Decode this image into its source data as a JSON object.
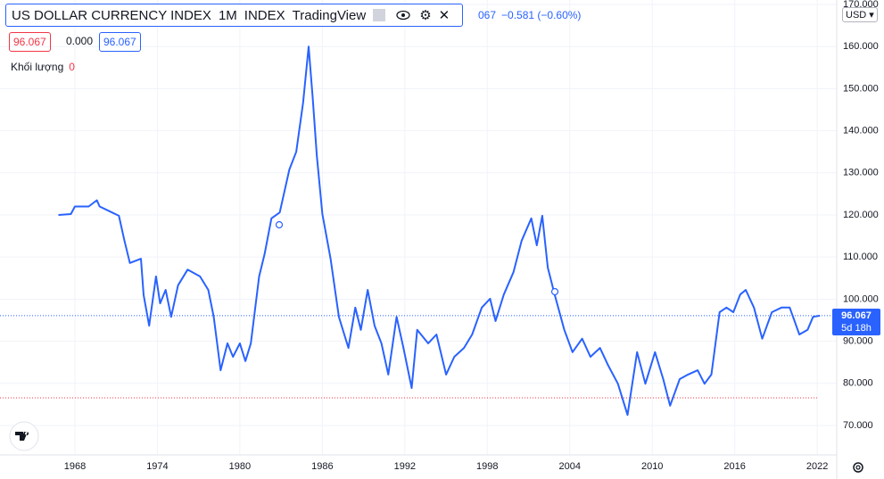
{
  "chart_data": {
    "type": "line",
    "title": "US DOLLAR CURRENCY INDEX",
    "interval": "1M",
    "exchange": "INDEX",
    "source": "TradingView",
    "header_price_fragment": "067",
    "header_change": "−0.581 (−0.60%)",
    "legend_values": [
      "96.067",
      "0.000",
      "96.067"
    ],
    "volume_label": "Khối lượng",
    "volume_value": 0,
    "currency": "USD",
    "last_price_label": "96.067",
    "countdown": "5d 18h",
    "color": "#2962ff",
    "x": [
      1966.8,
      1967.7,
      1968,
      1969,
      1969.6,
      1969.8,
      1970.7,
      1971.2,
      1971.6,
      1972,
      1972.8,
      1973,
      1973.4,
      1973.9,
      1974.2,
      1974.6,
      1975,
      1975.5,
      1976.2,
      1977.1,
      1977.7,
      1978.1,
      1978.6,
      1979.1,
      1979.5,
      1980,
      1980.4,
      1980.8,
      1981.4,
      1981.8,
      1982.3,
      1982.9,
      1983.6,
      1984.1,
      1984.6,
      1985.0,
      1985.3,
      1985.6,
      1986,
      1986.6,
      1987.2,
      1987.9,
      1988.4,
      1988.8,
      1989.3,
      1989.8,
      1990.3,
      1990.8,
      1991.4,
      1991.9,
      1992.5,
      1992.9,
      1993.7,
      1994.3,
      1995,
      1995.6,
      1996.3,
      1996.9,
      1997.6,
      1998.2,
      1998.6,
      1999.2,
      1999.9,
      2000.5,
      2001.2,
      2001.6,
      2002,
      2002.4,
      2002.9,
      2003.6,
      2004.2,
      2004.9,
      2005.5,
      2006.2,
      2006.8,
      2007.5,
      2008.2,
      2008.9,
      2009.5,
      2010.2,
      2010.8,
      2011.3,
      2012,
      2012.6,
      2013.3,
      2013.8,
      2014.3,
      2014.9,
      2015.4,
      2015.9,
      2016.4,
      2016.8,
      2017.4,
      2018,
      2018.7,
      2019.4,
      2020,
      2020.7,
      2021.3,
      2021.7,
      2022.2
    ],
    "values": [
      120,
      120.2,
      122,
      122,
      123.5,
      122,
      120.6,
      119.8,
      113.9,
      108.6,
      109.6,
      101,
      93.7,
      105.4,
      99,
      102.2,
      95.8,
      103.3,
      107,
      105.4,
      102.2,
      95.8,
      83.1,
      89.5,
      86.3,
      89.5,
      85.3,
      89.5,
      105.4,
      110.7,
      119.2,
      120.6,
      130.8,
      135,
      146.7,
      160,
      147.7,
      134,
      120.2,
      109.6,
      95.8,
      88.4,
      98,
      92.7,
      102.2,
      93.7,
      89.5,
      82.1,
      95.8,
      88.4,
      78.9,
      92.7,
      89.5,
      91.6,
      82.1,
      86.3,
      88.4,
      91.6,
      98,
      100.1,
      94.8,
      101.1,
      106.4,
      113.9,
      119.2,
      112.8,
      119.8,
      107.5,
      101.1,
      92.7,
      87.4,
      90.6,
      86.3,
      88.4,
      84.2,
      79.9,
      72.5,
      87.4,
      79.9,
      87.4,
      81,
      74.7,
      81,
      82.1,
      83.1,
      79.9,
      82.1,
      96.9,
      98,
      96.9,
      101.1,
      102.2,
      98,
      90.6,
      96.9,
      98,
      98,
      91.6,
      92.7,
      95.8,
      96.067
    ],
    "xlim": [
      1962.55,
      2023.42
    ],
    "ylim": [
      63,
      171.06
    ],
    "xticks": [
      1968,
      1974,
      1980,
      1986,
      1992,
      1998,
      2004,
      2010,
      2016,
      2022
    ],
    "yticks": [
      {
        "value": 70,
        "label": "70.000"
      },
      {
        "value": 80,
        "label": "80.000"
      },
      {
        "value": 90,
        "label": "90.000"
      },
      {
        "value": 100,
        "label": "100.000"
      },
      {
        "value": 110,
        "label": "110.000"
      },
      {
        "value": 120,
        "label": "120.000"
      },
      {
        "value": 130,
        "label": "130.000"
      },
      {
        "value": 140,
        "label": "140.000"
      },
      {
        "value": 150,
        "label": "150.000"
      },
      {
        "value": 160,
        "label": "160.000"
      },
      {
        "value": 170,
        "label": "170.000"
      }
    ],
    "grid": true
  }
}
